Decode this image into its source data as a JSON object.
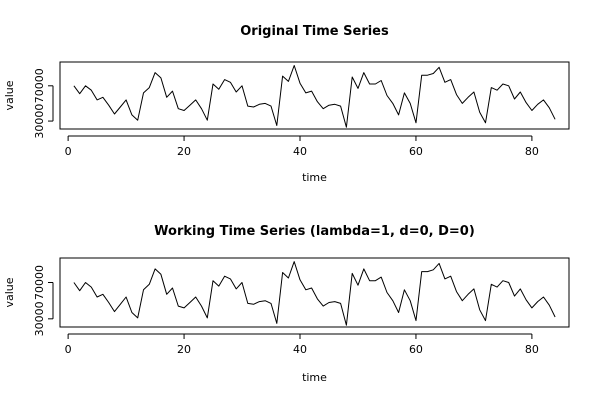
{
  "chart_data": [
    {
      "type": "line",
      "title": "Original Time Series",
      "xlabel": "time",
      "ylabel": "value",
      "xticks": [
        0,
        20,
        40,
        60,
        80
      ],
      "yticks": [
        30000,
        70000
      ],
      "xlim": [
        -1.4,
        86.4
      ],
      "ylim": [
        21000,
        97000
      ],
      "x_start": 1,
      "values": [
        70000,
        61000,
        70000,
        65000,
        54000,
        57000,
        48000,
        38000,
        46000,
        54000,
        37000,
        31000,
        62000,
        68000,
        85000,
        79000,
        57000,
        64000,
        44000,
        42000,
        48000,
        54000,
        44000,
        31000,
        72000,
        66000,
        77000,
        74000,
        63000,
        70000,
        47000,
        46000,
        49000,
        50000,
        47000,
        25000,
        81000,
        75000,
        93000,
        73000,
        62000,
        64000,
        52000,
        44000,
        48000,
        49000,
        47000,
        23000,
        80000,
        67000,
        85000,
        72000,
        72000,
        76000,
        59000,
        50000,
        37000,
        62000,
        50000,
        28000,
        82000,
        82000,
        84000,
        91000,
        74000,
        77000,
        60000,
        50000,
        57000,
        63000,
        40000,
        28000,
        68000,
        65000,
        72000,
        70000,
        55000,
        63000,
        51000,
        42000,
        49000,
        54000,
        45000,
        32000
      ]
    },
    {
      "type": "line",
      "title": "Working Time Series (lambda=1, d=0, D=0)",
      "xlabel": "time",
      "ylabel": "value",
      "xticks": [
        0,
        20,
        40,
        60,
        80
      ],
      "yticks": [
        30000,
        70000
      ],
      "xlim": [
        -1.4,
        86.4
      ],
      "ylim": [
        21000,
        97000
      ],
      "x_start": 1,
      "values": [
        70000,
        61000,
        70000,
        65000,
        54000,
        57000,
        48000,
        38000,
        46000,
        54000,
        37000,
        31000,
        62000,
        68000,
        85000,
        79000,
        57000,
        64000,
        44000,
        42000,
        48000,
        54000,
        44000,
        31000,
        72000,
        66000,
        77000,
        74000,
        63000,
        70000,
        47000,
        46000,
        49000,
        50000,
        47000,
        25000,
        81000,
        75000,
        93000,
        73000,
        62000,
        64000,
        52000,
        44000,
        48000,
        49000,
        47000,
        23000,
        80000,
        67000,
        85000,
        72000,
        72000,
        76000,
        59000,
        50000,
        37000,
        62000,
        50000,
        28000,
        82000,
        82000,
        84000,
        91000,
        74000,
        77000,
        60000,
        50000,
        57000,
        63000,
        40000,
        28000,
        68000,
        65000,
        72000,
        70000,
        55000,
        63000,
        51000,
        42000,
        49000,
        54000,
        45000,
        32000
      ]
    }
  ]
}
